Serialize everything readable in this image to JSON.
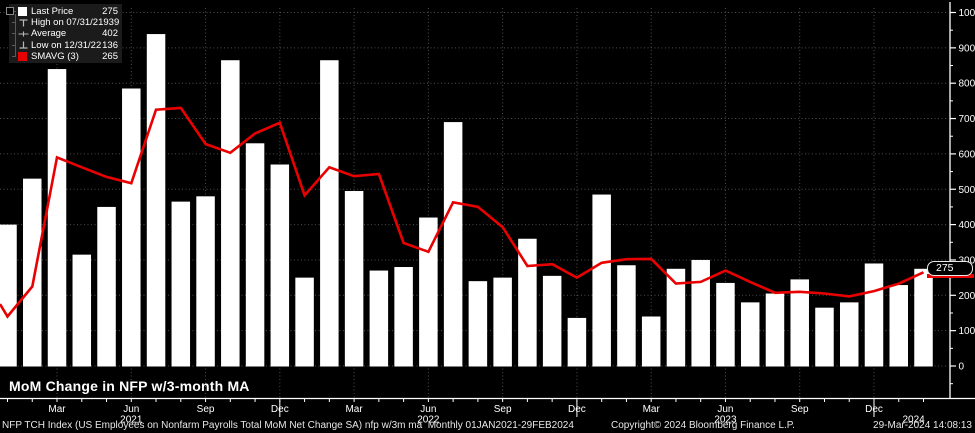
{
  "chart": {
    "title": "MoM Change in NFP w/3-month MA"
  },
  "legend": {
    "rows": [
      {
        "icon": "white-square",
        "label": "Last Price",
        "value": "275"
      },
      {
        "icon": "high-marker",
        "label": "High on 07/31/21",
        "value": "939"
      },
      {
        "icon": "average-marker",
        "label": "Average",
        "value": "402"
      },
      {
        "icon": "low-marker",
        "label": "Low on 12/31/22",
        "value": "136"
      },
      {
        "icon": "red-square",
        "label": "SMAVG (3)",
        "value": "265"
      }
    ]
  },
  "badge": {
    "value": "275"
  },
  "footer": {
    "left": "NFP TCH Index (US Employees on Nonfarm Payrolls Total MoM Net Change SA) nfp w/3m ma  Monthly 01JAN2021-29FEB2024",
    "copyright": "Copyright© 2024 Bloomberg Finance L.P.",
    "timestamp": "29-Mar-2024 14:08:13"
  },
  "colors": {
    "background": "#000000",
    "bar": "#ffffff",
    "line": "#e90000",
    "grid": "#4f4f4f",
    "axis": "#ffffff",
    "legend_bg": "#1b1b1b"
  },
  "chart_data": {
    "type": "bar",
    "title": "MoM Change in NFP w/3-month MA",
    "x": [
      "Jan 2021",
      "Feb 2021",
      "Mar 2021",
      "Apr 2021",
      "May 2021",
      "Jun 2021",
      "Jul 2021",
      "Aug 2021",
      "Sep 2021",
      "Oct 2021",
      "Nov 2021",
      "Dec 2021",
      "Jan 2022",
      "Feb 2022",
      "Mar 2022",
      "Apr 2022",
      "May 2022",
      "Jun 2022",
      "Jul 2022",
      "Aug 2022",
      "Sep 2022",
      "Oct 2022",
      "Nov 2022",
      "Dec 2022",
      "Jan 2023",
      "Feb 2023",
      "Mar 2023",
      "Apr 2023",
      "May 2023",
      "Jun 2023",
      "Jul 2023",
      "Aug 2023",
      "Sep 2023",
      "Oct 2023",
      "Nov 2023",
      "Dec 2023",
      "Jan 2024",
      "Feb 2024"
    ],
    "series": [
      {
        "name": "NFP Total MoM Net Change SA (Last Price)",
        "type": "bar",
        "color": "#ffffff",
        "values": [
          400,
          530,
          840,
          315,
          450,
          785,
          939,
          465,
          480,
          865,
          630,
          570,
          250,
          865,
          495,
          270,
          280,
          420,
          690,
          240,
          250,
          360,
          255,
          136,
          485,
          285,
          140,
          275,
          300,
          235,
          180,
          205,
          245,
          165,
          180,
          290,
          229,
          275
        ]
      },
      {
        "name": "SMAVG (3)",
        "type": "line",
        "color": "#e90000",
        "left_edge_value": 175,
        "values": [
          140,
          225,
          590,
          562,
          535,
          517,
          725,
          730,
          628,
          603,
          658,
          688,
          483,
          562,
          537,
          543,
          348,
          323,
          463,
          450,
          393,
          283,
          288,
          250,
          292,
          302,
          303,
          233,
          238,
          270,
          238,
          207,
          210,
          205,
          197,
          212,
          233,
          265
        ]
      }
    ],
    "stats": {
      "last_price": 275,
      "high_date": "07/31/21",
      "high": 939,
      "average": 402,
      "low_date": "12/31/22",
      "low": 136,
      "smavg3": 265
    },
    "ylim": [
      -95,
      1020
    ],
    "grid": "dotted",
    "legend_position": "top-left",
    "y_axis": {
      "side": "right",
      "ticks": [
        0,
        100,
        200,
        300,
        400,
        500,
        600,
        700,
        800,
        900,
        1000
      ],
      "minor_step": 50
    },
    "x_axis": {
      "quarter_labels": [
        {
          "i": 2,
          "label": "Mar"
        },
        {
          "i": 5,
          "label": "Jun"
        },
        {
          "i": 8,
          "label": "Sep"
        },
        {
          "i": 11,
          "label": "Dec"
        },
        {
          "i": 14,
          "label": "Mar"
        },
        {
          "i": 17,
          "label": "Jun"
        },
        {
          "i": 20,
          "label": "Sep"
        },
        {
          "i": 23,
          "label": "Dec"
        },
        {
          "i": 26,
          "label": "Mar"
        },
        {
          "i": 29,
          "label": "Jun"
        },
        {
          "i": 32,
          "label": "Sep"
        },
        {
          "i": 35,
          "label": "Dec"
        }
      ],
      "year_labels": [
        {
          "i": 5,
          "label": "2021"
        },
        {
          "i": 17,
          "label": "2022"
        },
        {
          "i": 29,
          "label": "2023"
        },
        {
          "i": 36.6,
          "label": "2024"
        }
      ],
      "year_separator_indices": [
        11,
        23,
        35
      ]
    }
  }
}
